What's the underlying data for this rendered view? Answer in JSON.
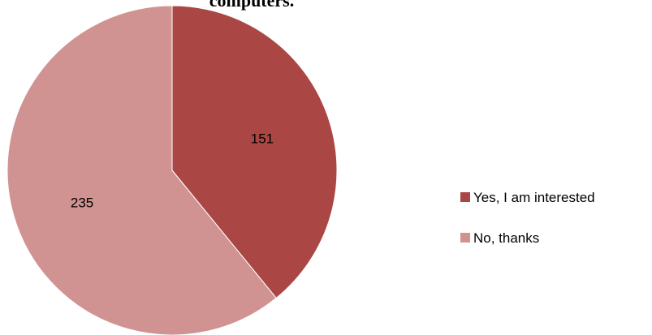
{
  "chart_data": {
    "type": "pie",
    "title": "computers.",
    "categories": [
      "Yes, I am interested",
      "No, thanks"
    ],
    "values": [
      151,
      235
    ],
    "colors": [
      "#aa4744",
      "#d09392"
    ]
  }
}
